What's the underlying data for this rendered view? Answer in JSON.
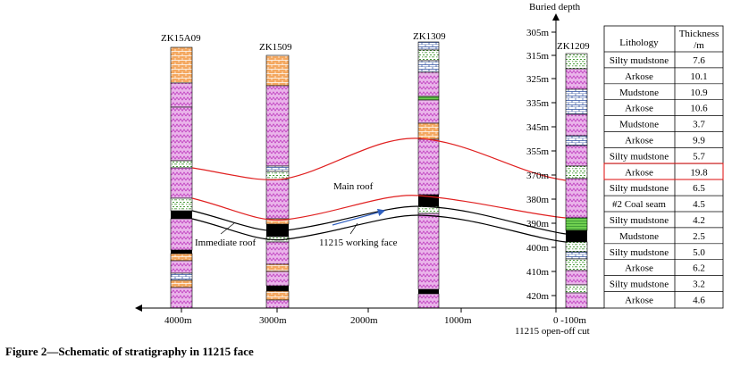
{
  "figure": {
    "caption": "Figure 2—Schematic of stratigraphy in 11215 face"
  },
  "axis": {
    "depth_title": "Buried depth",
    "depth_labels": [
      "305m",
      "315m",
      "325m",
      "335m",
      "345m",
      "355m",
      "370m",
      "380m",
      "390m",
      "400m",
      "410m",
      "420m"
    ],
    "distance_labels": [
      "4000m",
      "3000m",
      "2000m",
      "1000m",
      "0 -100m"
    ],
    "open_off_cut": "11215 open-off cut"
  },
  "boreholes": [
    {
      "id": "ZK15A09"
    },
    {
      "id": "ZK1509"
    },
    {
      "id": "ZK1309"
    },
    {
      "id": "ZK1209"
    }
  ],
  "annotations": {
    "main_roof": "Main roof",
    "immediate_roof": "Immediate roof",
    "working_face": "11215 working face"
  },
  "table": {
    "header_lithology": "Lithology",
    "header_thickness_1": "Thickness",
    "header_thickness_2": "/m",
    "rows": [
      {
        "lithology": "Silty mudstone",
        "thickness": "7.6"
      },
      {
        "lithology": "Arkose",
        "thickness": "10.1"
      },
      {
        "lithology": "Mudstone",
        "thickness": "10.9"
      },
      {
        "lithology": "Arkose",
        "thickness": "10.6"
      },
      {
        "lithology": "Mudstone",
        "thickness": "3.7"
      },
      {
        "lithology": "Arkose",
        "thickness": "9.9"
      },
      {
        "lithology": "Silty mudstone",
        "thickness": "5.7"
      },
      {
        "lithology": "Arkose",
        "thickness": "19.8"
      },
      {
        "lithology": "Silty mudstone",
        "thickness": "6.5"
      },
      {
        "lithology": "#2 Coal seam",
        "thickness": "4.5"
      },
      {
        "lithology": "Silty mudstone",
        "thickness": "4.2"
      },
      {
        "lithology": "Mudstone",
        "thickness": "2.5"
      },
      {
        "lithology": "Silty mudstone",
        "thickness": "5.0"
      },
      {
        "lithology": "Arkose",
        "thickness": "6.2"
      },
      {
        "lithology": "Silty mudstone",
        "thickness": "3.2"
      },
      {
        "lithology": "Arkose",
        "thickness": "4.6"
      }
    ]
  },
  "colors": {
    "arkose": "#e8a8e8",
    "sandstone_orange": "#f0a050",
    "mudstone": "#ffffff",
    "coal": "#000000",
    "silty_green": "#7fbf5f",
    "roof_line": "#e02020",
    "arrow_blue": "#3060c0"
  }
}
